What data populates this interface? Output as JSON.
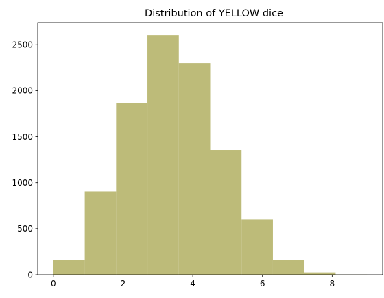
{
  "chart_data": {
    "type": "bar",
    "title": "Distribution of YELLOW dice",
    "xlabel": "",
    "ylabel": "",
    "bar_color": "#bdbb79",
    "bins": [
      {
        "x0": 0.0,
        "x1": 0.9,
        "count": 160
      },
      {
        "x0": 0.9,
        "x1": 1.8,
        "count": 905
      },
      {
        "x0": 1.8,
        "x1": 2.7,
        "count": 1865
      },
      {
        "x0": 2.7,
        "x1": 3.6,
        "count": 2605
      },
      {
        "x0": 3.6,
        "x1": 4.5,
        "count": 2300
      },
      {
        "x0": 4.5,
        "x1": 5.4,
        "count": 1355
      },
      {
        "x0": 5.4,
        "x1": 6.3,
        "count": 600
      },
      {
        "x0": 6.3,
        "x1": 7.2,
        "count": 160
      },
      {
        "x0": 7.2,
        "x1": 8.1,
        "count": 25
      },
      {
        "x0": 8.1,
        "x1": 9.0,
        "count": 2
      }
    ],
    "xlim": [
      -0.45,
      9.45
    ],
    "ylim": [
      0,
      2740
    ],
    "xticks": [
      0,
      2,
      4,
      6,
      8
    ],
    "yticks": [
      0,
      500,
      1000,
      1500,
      2000,
      2500
    ],
    "grid": false,
    "legend": "none"
  }
}
